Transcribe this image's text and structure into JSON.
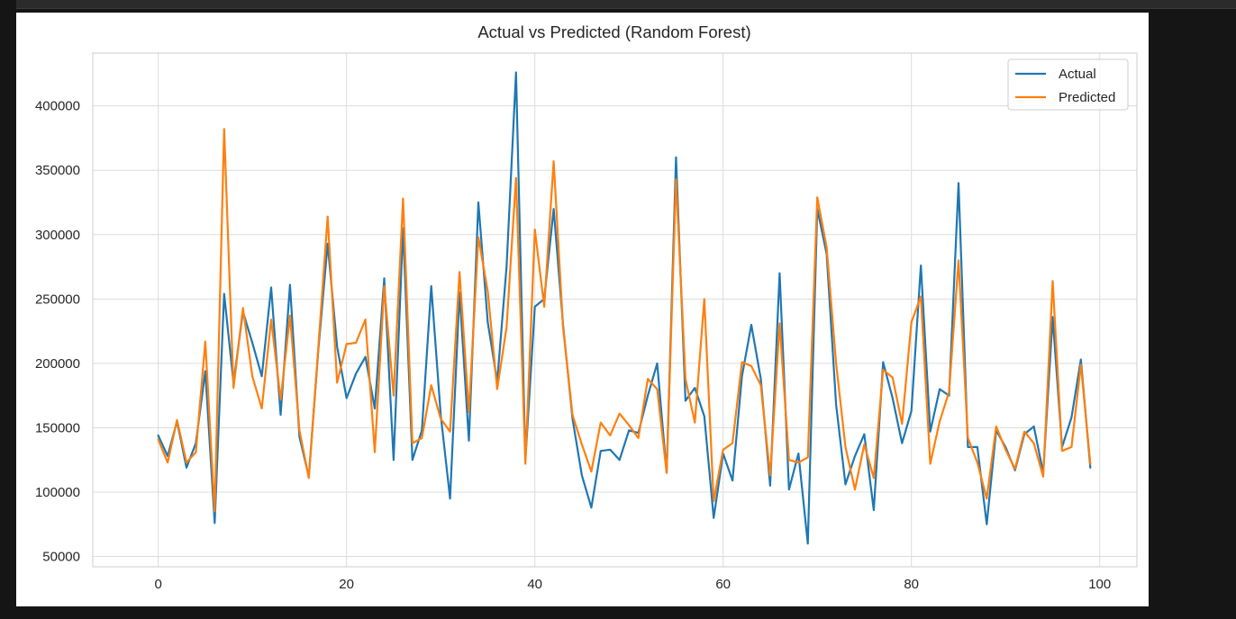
{
  "chart_data": {
    "type": "line",
    "title": "Actual vs Predicted (Random Forest)",
    "xlabel": "",
    "ylabel": "",
    "xlim": [
      -6.95,
      103.95
    ],
    "ylim": [
      42000,
      441000
    ],
    "xticks": [
      0,
      20,
      40,
      60,
      80,
      100
    ],
    "xtick_labels": [
      "0",
      "20",
      "40",
      "60",
      "80",
      "100"
    ],
    "yticks": [
      50000,
      100000,
      150000,
      200000,
      250000,
      300000,
      350000,
      400000
    ],
    "ytick_labels": [
      "50000",
      "100000",
      "150000",
      "200000",
      "250000",
      "300000",
      "350000",
      "400000"
    ],
    "grid": true,
    "legend_position": "upper right",
    "series": [
      {
        "name": "Actual",
        "color": "#1f77b4",
        "x": [
          0,
          1,
          2,
          3,
          4,
          5,
          6,
          7,
          8,
          9,
          10,
          11,
          12,
          13,
          14,
          15,
          16,
          17,
          18,
          19,
          20,
          21,
          22,
          23,
          24,
          25,
          26,
          27,
          28,
          29,
          30,
          31,
          32,
          33,
          34,
          35,
          36,
          37,
          38,
          39,
          40,
          41,
          42,
          43,
          44,
          45,
          46,
          47,
          48,
          49,
          50,
          51,
          52,
          53,
          54,
          55,
          56,
          57,
          58,
          59,
          60,
          61,
          62,
          63,
          64,
          65,
          66,
          67,
          68,
          69,
          70,
          71,
          72,
          73,
          74,
          75,
          76,
          77,
          78,
          79,
          80,
          81,
          82,
          83,
          84,
          85,
          86,
          87,
          88,
          89,
          90,
          91,
          92,
          93,
          94,
          95,
          96,
          97,
          98,
          99
        ],
        "values": [
          144000,
          128000,
          155000,
          119000,
          138000,
          194000,
          76000,
          254000,
          185000,
          240000,
          216000,
          190000,
          259000,
          160000,
          261000,
          143000,
          112000,
          210000,
          293000,
          213000,
          173000,
          192000,
          205000,
          165000,
          266000,
          125000,
          305000,
          125000,
          148000,
          260000,
          160000,
          95000,
          255000,
          140000,
          325000,
          232000,
          186000,
          275000,
          426000,
          125000,
          244000,
          250000,
          320000,
          230000,
          157000,
          113000,
          88000,
          132000,
          133000,
          125000,
          148000,
          146000,
          175000,
          200000,
          115000,
          360000,
          171000,
          181000,
          159000,
          80000,
          130000,
          109000,
          190000,
          230000,
          188000,
          105000,
          270000,
          102000,
          130000,
          60000,
          320000,
          285000,
          168000,
          106000,
          128000,
          145000,
          86000,
          201000,
          173000,
          138000,
          163000,
          276000,
          147000,
          180000,
          175000,
          340000,
          135000,
          135000,
          75000,
          148000,
          135000,
          117000,
          145000,
          151000,
          115000,
          236000,
          135000,
          158000,
          203000,
          119000
        ]
      },
      {
        "name": "Predicted",
        "color": "#ff7f0e",
        "x": [
          0,
          1,
          2,
          3,
          4,
          5,
          6,
          7,
          8,
          9,
          10,
          11,
          12,
          13,
          14,
          15,
          16,
          17,
          18,
          19,
          20,
          21,
          22,
          23,
          24,
          25,
          26,
          27,
          28,
          29,
          30,
          31,
          32,
          33,
          34,
          35,
          36,
          37,
          38,
          39,
          40,
          41,
          42,
          43,
          44,
          45,
          46,
          47,
          48,
          49,
          50,
          51,
          52,
          53,
          54,
          55,
          56,
          57,
          58,
          59,
          60,
          61,
          62,
          63,
          64,
          65,
          66,
          67,
          68,
          69,
          70,
          71,
          72,
          73,
          74,
          75,
          76,
          77,
          78,
          79,
          80,
          81,
          82,
          83,
          84,
          85,
          86,
          87,
          88,
          89,
          90,
          91,
          92,
          93,
          94,
          95,
          96,
          97,
          98,
          99
        ],
        "values": [
          141000,
          123000,
          156000,
          123000,
          131000,
          217000,
          85000,
          382000,
          181000,
          243000,
          190000,
          165000,
          234000,
          172000,
          237000,
          148000,
          111000,
          212000,
          314000,
          185000,
          215000,
          216000,
          234000,
          131000,
          260000,
          175000,
          328000,
          138000,
          142000,
          183000,
          157000,
          147000,
          271000,
          162000,
          298000,
          256000,
          180000,
          228000,
          344000,
          122000,
          304000,
          244000,
          357000,
          228000,
          160000,
          137000,
          116000,
          154000,
          144000,
          161000,
          152000,
          142000,
          188000,
          180000,
          115000,
          343000,
          188000,
          154000,
          250000,
          93000,
          133000,
          138000,
          201000,
          198000,
          183000,
          113000,
          231000,
          125000,
          123000,
          127000,
          329000,
          290000,
          200000,
          135000,
          102000,
          137000,
          111000,
          195000,
          189000,
          153000,
          232000,
          252000,
          122000,
          155000,
          178000,
          280000,
          142000,
          123000,
          95000,
          151000,
          133000,
          118000,
          147000,
          138000,
          112000,
          264000,
          132000,
          135000,
          199000,
          122000
        ]
      }
    ]
  }
}
